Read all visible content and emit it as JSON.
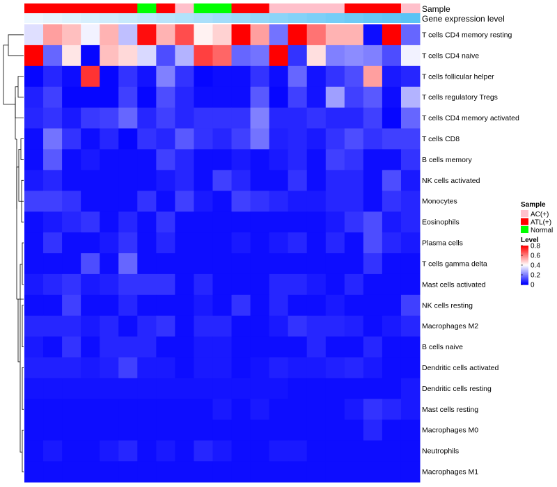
{
  "chart_data": {
    "type": "heatmap",
    "title": "",
    "annotation_labels": {
      "sample": "Sample",
      "expression": "Gene expression level"
    },
    "sample_groups": [
      "ATL(+)",
      "ATL(+)",
      "ATL(+)",
      "ATL(+)",
      "ATL(+)",
      "ATL(+)",
      "Normal",
      "ATL(+)",
      "AC(+)",
      "Normal",
      "Normal",
      "ATL(+)",
      "ATL(+)",
      "AC(+)",
      "AC(+)",
      "AC(+)",
      "AC(+)",
      "ATL(+)",
      "ATL(+)",
      "ATL(+)",
      "AC(+)"
    ],
    "expression_level": [
      0.02,
      0.07,
      0.12,
      0.17,
      0.22,
      0.27,
      0.32,
      0.37,
      0.42,
      0.47,
      0.52,
      0.57,
      0.62,
      0.67,
      0.72,
      0.77,
      0.82,
      0.87,
      0.92,
      0.96,
      1.0
    ],
    "rows": [
      {
        "name": "T cells CD4 memory resting",
        "values": [
          0.35,
          0.55,
          0.5,
          0.38,
          0.52,
          0.3,
          0.78,
          0.52,
          0.68,
          0.42,
          0.47,
          0.8,
          0.55,
          0.18,
          0.82,
          0.62,
          0.52,
          0.52,
          0.02,
          0.82,
          0.16
        ]
      },
      {
        "name": "T cells CD4 naive",
        "values": [
          0.8,
          0.16,
          0.44,
          0.01,
          0.5,
          0.46,
          0.34,
          0.12,
          0.28,
          0.7,
          0.64,
          0.16,
          0.18,
          0.8,
          0.08,
          0.45,
          0.2,
          0.22,
          0.2,
          0.12,
          0.38
        ]
      },
      {
        "name": "T cells follicular helper",
        "values": [
          0.01,
          0.06,
          0.02,
          0.72,
          0.01,
          0.08,
          0.03,
          0.2,
          0.08,
          0.01,
          0.02,
          0.02,
          0.08,
          0.02,
          0.16,
          0.03,
          0.08,
          0.12,
          0.55,
          0.04,
          0.06
        ]
      },
      {
        "name": "T cells regulatory  Tregs",
        "values": [
          0.05,
          0.1,
          0.01,
          0.01,
          0.01,
          0.1,
          0.01,
          0.12,
          0.06,
          0.02,
          0.02,
          0.02,
          0.14,
          0.01,
          0.1,
          0.03,
          0.25,
          0.1,
          0.14,
          0.02,
          0.28
        ]
      },
      {
        "name": "T cells CD4 memory activated",
        "values": [
          0.06,
          0.08,
          0.04,
          0.09,
          0.1,
          0.16,
          0.06,
          0.1,
          0.06,
          0.08,
          0.08,
          0.08,
          0.2,
          0.06,
          0.06,
          0.08,
          0.06,
          0.06,
          0.1,
          0.01,
          0.16
        ]
      },
      {
        "name": "T cells CD8",
        "values": [
          0.02,
          0.18,
          0.08,
          0.02,
          0.06,
          0.01,
          0.08,
          0.06,
          0.14,
          0.08,
          0.06,
          0.1,
          0.18,
          0.05,
          0.06,
          0.04,
          0.08,
          0.12,
          0.08,
          0.1,
          0.1
        ]
      },
      {
        "name": "B cells memory",
        "values": [
          0.02,
          0.14,
          0.02,
          0.04,
          0.02,
          0.02,
          0.02,
          0.1,
          0.06,
          0.02,
          0.02,
          0.04,
          0.02,
          0.04,
          0.06,
          0.02,
          0.1,
          0.08,
          0.02,
          0.02,
          0.08
        ]
      },
      {
        "name": "NK cells activated",
        "values": [
          0.04,
          0.06,
          0.02,
          0.02,
          0.02,
          0.02,
          0.02,
          0.04,
          0.06,
          0.02,
          0.1,
          0.06,
          0.02,
          0.02,
          0.08,
          0.02,
          0.06,
          0.06,
          0.02,
          0.12,
          0.04
        ]
      },
      {
        "name": "Monocytes",
        "values": [
          0.1,
          0.1,
          0.08,
          0.02,
          0.02,
          0.02,
          0.08,
          0.02,
          0.1,
          0.04,
          0.02,
          0.1,
          0.08,
          0.06,
          0.04,
          0.04,
          0.06,
          0.06,
          0.02,
          0.08,
          0.06
        ]
      },
      {
        "name": "Eosinophils",
        "values": [
          0.02,
          0.04,
          0.06,
          0.08,
          0.02,
          0.06,
          0.02,
          0.08,
          0.02,
          0.02,
          0.02,
          0.02,
          0.02,
          0.02,
          0.02,
          0.02,
          0.04,
          0.08,
          0.12,
          0.04,
          0.06
        ]
      },
      {
        "name": "Plasma cells",
        "values": [
          0.02,
          0.08,
          0.02,
          0.02,
          0.04,
          0.08,
          0.02,
          0.06,
          0.02,
          0.02,
          0.02,
          0.04,
          0.02,
          0.04,
          0.06,
          0.02,
          0.06,
          0.02,
          0.12,
          0.06,
          0.04
        ]
      },
      {
        "name": "T cells gamma delta",
        "values": [
          0.02,
          0.02,
          0.02,
          0.12,
          0.02,
          0.16,
          0.02,
          0.02,
          0.02,
          0.02,
          0.02,
          0.02,
          0.02,
          0.02,
          0.02,
          0.02,
          0.02,
          0.02,
          0.08,
          0.02,
          0.02
        ]
      },
      {
        "name": "Mast cells activated",
        "values": [
          0.04,
          0.06,
          0.08,
          0.04,
          0.05,
          0.08,
          0.08,
          0.08,
          0.02,
          0.06,
          0.02,
          0.02,
          0.02,
          0.06,
          0.06,
          0.04,
          0.02,
          0.06,
          0.02,
          0.02,
          0.02
        ]
      },
      {
        "name": "NK cells resting",
        "values": [
          0.02,
          0.02,
          0.1,
          0.02,
          0.02,
          0.06,
          0.02,
          0.02,
          0.02,
          0.04,
          0.02,
          0.08,
          0.02,
          0.06,
          0.02,
          0.02,
          0.04,
          0.02,
          0.02,
          0.02,
          0.1
        ]
      },
      {
        "name": "Macrophages M2",
        "values": [
          0.06,
          0.06,
          0.06,
          0.04,
          0.06,
          0.02,
          0.06,
          0.08,
          0.02,
          0.06,
          0.06,
          0.02,
          0.02,
          0.04,
          0.08,
          0.06,
          0.06,
          0.05,
          0.02,
          0.04,
          0.06
        ]
      },
      {
        "name": "B cells naive",
        "values": [
          0.04,
          0.02,
          0.08,
          0.02,
          0.06,
          0.06,
          0.06,
          0.02,
          0.02,
          0.04,
          0.04,
          0.02,
          0.02,
          0.02,
          0.02,
          0.06,
          0.02,
          0.02,
          0.06,
          0.02,
          0.02
        ]
      },
      {
        "name": "Dendritic cells activated",
        "values": [
          0.05,
          0.05,
          0.05,
          0.04,
          0.05,
          0.1,
          0.04,
          0.04,
          0.02,
          0.04,
          0.04,
          0.02,
          0.03,
          0.05,
          0.04,
          0.04,
          0.05,
          0.06,
          0.04,
          0.02,
          0.02
        ]
      },
      {
        "name": "Dendritic cells resting",
        "values": [
          0.03,
          0.03,
          0.03,
          0.03,
          0.03,
          0.03,
          0.03,
          0.03,
          0.03,
          0.03,
          0.03,
          0.03,
          0.03,
          0.03,
          0.02,
          0.02,
          0.02,
          0.02,
          0.02,
          0.02,
          0.04
        ]
      },
      {
        "name": "Mast cells resting",
        "values": [
          0.02,
          0.02,
          0.02,
          0.02,
          0.02,
          0.02,
          0.02,
          0.02,
          0.02,
          0.02,
          0.04,
          0.02,
          0.04,
          0.02,
          0.02,
          0.02,
          0.02,
          0.04,
          0.08,
          0.06,
          0.04
        ]
      },
      {
        "name": "Macrophages M0",
        "values": [
          0.02,
          0.02,
          0.02,
          0.02,
          0.02,
          0.02,
          0.02,
          0.02,
          0.02,
          0.02,
          0.02,
          0.02,
          0.02,
          0.02,
          0.02,
          0.02,
          0.02,
          0.02,
          0.06,
          0.02,
          0.02
        ]
      },
      {
        "name": "Neutrophils",
        "values": [
          0.02,
          0.04,
          0.02,
          0.02,
          0.04,
          0.06,
          0.02,
          0.04,
          0.02,
          0.06,
          0.04,
          0.02,
          0.02,
          0.04,
          0.04,
          0.02,
          0.02,
          0.02,
          0.02,
          0.02,
          0.02
        ]
      },
      {
        "name": "Macrophages M1",
        "values": [
          0.02,
          0.02,
          0.02,
          0.02,
          0.02,
          0.02,
          0.02,
          0.02,
          0.02,
          0.02,
          0.02,
          0.02,
          0.02,
          0.02,
          0.02,
          0.02,
          0.02,
          0.02,
          0.02,
          0.02,
          0.02
        ]
      }
    ],
    "sample_legend": {
      "title": "Sample",
      "entries": [
        {
          "label": "AC(+)",
          "color": "#ffc0cb"
        },
        {
          "label": "ATL(+)",
          "color": "#ff0000"
        },
        {
          "label": "Normal",
          "color": "#00ff00"
        }
      ]
    },
    "level_legend": {
      "title": "Level",
      "ticks": [
        0.8,
        0.6,
        0.4,
        0.2,
        0
      ],
      "range": [
        0,
        0.8
      ],
      "low_color": "#0000ff",
      "mid_color": "#ffffff",
      "high_color": "#ff0000"
    },
    "dendrogram": "row clustering tree on left"
  }
}
